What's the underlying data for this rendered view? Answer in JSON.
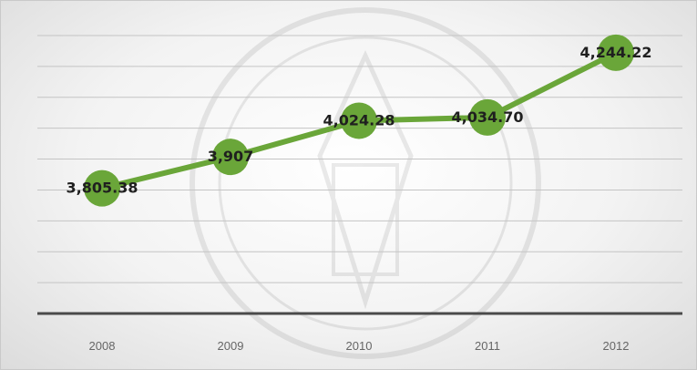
{
  "chart_data": {
    "type": "line",
    "categories": [
      "2008",
      "2009",
      "2010",
      "2011",
      "2012"
    ],
    "values": [
      3805.38,
      3907,
      4024.28,
      4034.7,
      4244.22
    ],
    "data_labels": [
      "3,805.38",
      "3,907",
      "4,024.28",
      "4,034.70",
      "4,244.22"
    ],
    "title": "",
    "xlabel": "",
    "ylabel": "",
    "ylim": [
      3400,
      4300
    ],
    "grid": true,
    "legend": "none",
    "colors": {
      "line": "#6aa639",
      "marker": "#6aa639",
      "axis": "#4a4a4a",
      "grid": "#c4c4c4"
    }
  }
}
